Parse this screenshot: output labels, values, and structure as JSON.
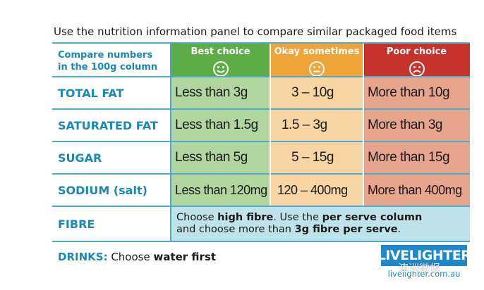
{
  "intro": "Use the nutrition information panel to compare similar packaged food items",
  "header": {
    "compare_line1": "Compare numbers",
    "compare_line2": "in the 100g column",
    "best": "Best choice",
    "okay": "Okay sometimes",
    "poor": "Poor choice",
    "best_face": "happy-face-icon",
    "okay_face": "neutral-face-icon",
    "poor_face": "sad-face-icon"
  },
  "rows": [
    {
      "label": "TOTAL FAT",
      "best": "Less than 3g",
      "okay": "3 – 10g",
      "poor": "More than 10g"
    },
    {
      "label": "SATURATED FAT",
      "best": "Less than 1.5g",
      "okay": "1.5 – 3g",
      "poor": "More than 3g"
    },
    {
      "label": "SUGAR",
      "best": "Less than 5g",
      "okay": "5 – 15g",
      "poor": "More than 15g"
    },
    {
      "label": "SODIUM (salt)",
      "best": "Less than 120mg",
      "okay": "120 – 400mg",
      "poor": "More than 400mg"
    }
  ],
  "fibre": {
    "label": "FIBRE",
    "t1": "Choose ",
    "t2": "high fibre",
    "t3": ". Use the ",
    "t4": "per serve column",
    "t5": "and choose more than ",
    "t6": "3g fibre per serve",
    "t7": "."
  },
  "drinks": {
    "label": "DRINKS:",
    "t1": " Choose ",
    "t2": "water first"
  },
  "logo": {
    "brand": "LIVELIGHTER",
    "url": "livelighter.com.au"
  },
  "watermark": "澳洲微报",
  "colors": {
    "best_header": "#5cad46",
    "okay_header": "#eea437",
    "poor_header": "#c5332c",
    "best_cell": "#b2d6a0",
    "okay_cell": "#f7d6a3",
    "poor_cell": "#e8a58e",
    "fibre_cell": "#bfe3ea",
    "label_text": "#1a8ab5",
    "rule": "#4fa9c9"
  }
}
